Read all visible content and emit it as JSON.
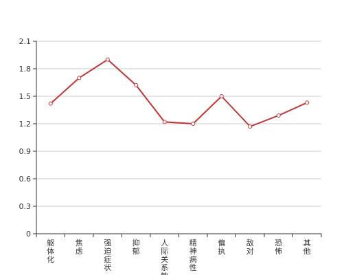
{
  "chart_data": {
    "type": "line",
    "categories": [
      "躯体化",
      "焦虑",
      "强迫症状",
      "抑郁",
      "人际关系敏感",
      "精神病性",
      "偏执",
      "敌对",
      "恐怖",
      "其他"
    ],
    "series": [
      {
        "values": [
          1.42,
          1.7,
          1.9,
          1.62,
          1.22,
          1.2,
          1.5,
          1.17,
          1.29,
          1.43
        ]
      }
    ],
    "yticks": [
      "0",
      "0.3",
      "0.6",
      "0.9",
      "1.2",
      "1.5",
      "1.8",
      "2.1"
    ],
    "ylim": [
      0,
      2.1
    ],
    "grid": true,
    "legend": "none",
    "colors": {
      "line": "#c23531",
      "grid": "#cccccc",
      "axis": "#333333",
      "point_fill": "#ffffff"
    }
  }
}
